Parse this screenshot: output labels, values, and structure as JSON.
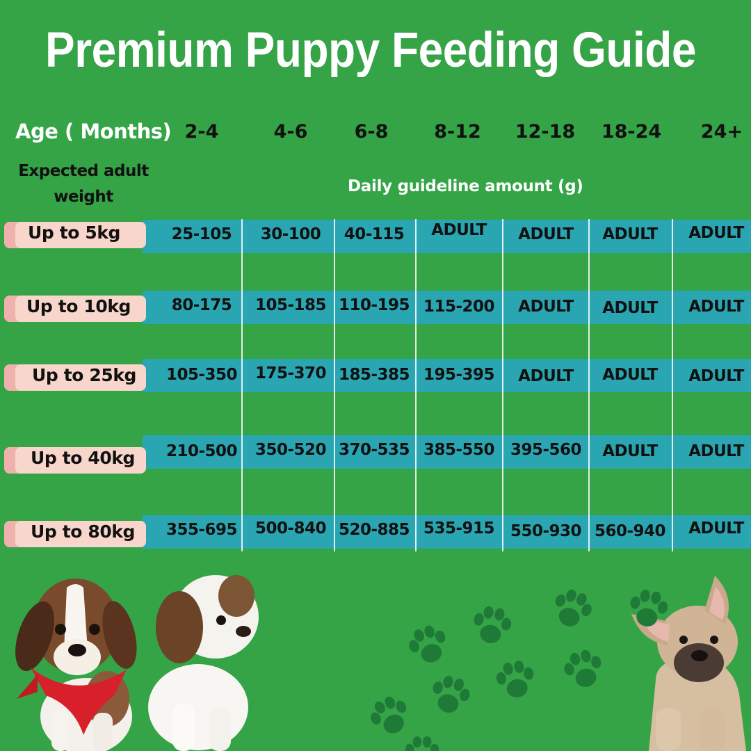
{
  "title": "Premium Puppy Feeding Guide",
  "header": {
    "age_label": "Age ( Months)",
    "ages": [
      "2-4",
      "4-6",
      "6-8",
      "8-12",
      "12-18",
      "18-24",
      "24+"
    ],
    "weight_label": "Expected adult weight",
    "amount_label": "Daily guideline amount (g)"
  },
  "rows": [
    {
      "label": "Up to 5kg",
      "values": [
        "25-105",
        "30-100",
        "40-115",
        "ADULT",
        "ADULT",
        "ADULT",
        "ADULT"
      ]
    },
    {
      "label": "Up to 10kg",
      "values": [
        "80-175",
        "105-185",
        "110-195",
        "115-200",
        "ADULT",
        "ADULT",
        "ADULT"
      ]
    },
    {
      "label": "Up to 25kg",
      "values": [
        "105-350",
        "175-370",
        "185-385",
        "195-395",
        "ADULT",
        "ADULT",
        "ADULT"
      ]
    },
    {
      "label": "Up to 40kg",
      "values": [
        "210-500",
        "350-520",
        "370-535",
        "385-550",
        "395-560",
        "ADULT",
        "ADULT"
      ]
    },
    {
      "label": "Up to 80kg",
      "values": [
        "355-695",
        "500-840",
        "520-885",
        "535-915",
        "550-930",
        "560-940",
        "ADULT"
      ]
    }
  ],
  "colors": {
    "background": "#34a446",
    "row_band": "#2aa6b3",
    "label_tab": "#f9d6cb",
    "label_tab_accent": "#efb1ac",
    "paw": "#1f7a37"
  },
  "illustrations": [
    "beagle-puppy-with-red-bandana",
    "shih-tzu-puppy",
    "french-bulldog-puppy",
    "paw-prints"
  ]
}
